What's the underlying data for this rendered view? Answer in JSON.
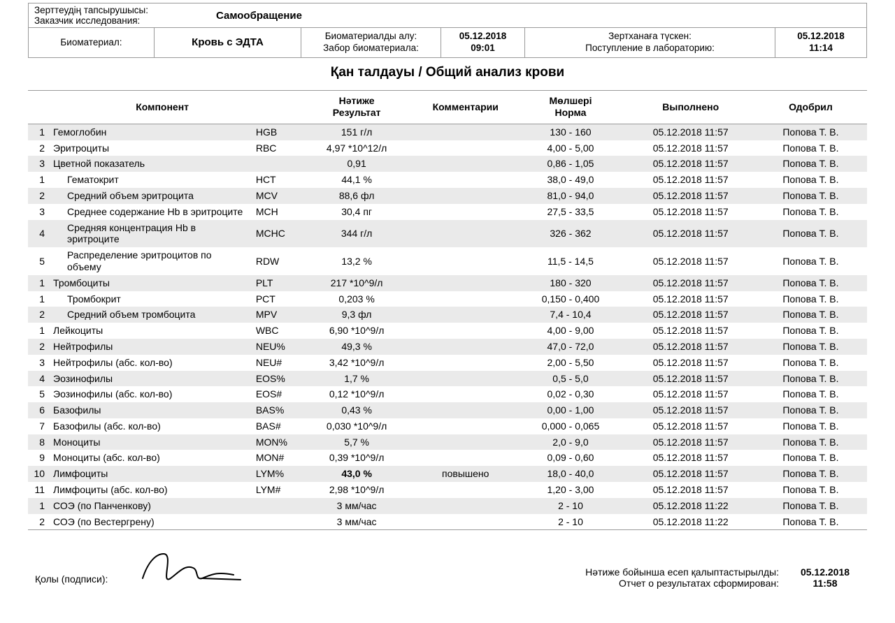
{
  "header": {
    "requester_label_kk": "Зерттеудің тапсырушысы:",
    "requester_label_ru": "Заказчик исследования:",
    "requester_value": "Самообращение",
    "biomaterial_label": "Биоматериал:",
    "biomaterial_value": "Кровь с ЭДТА",
    "collection_label_kk": "Биоматериалды алу:",
    "collection_label_ru": "Забор биоматериала:",
    "collection_date": "05.12.2018",
    "collection_time": "09:01",
    "lab_label_kk": "Зертханаға түскен:",
    "lab_label_ru": "Поступление в лабораторию:",
    "lab_date": "05.12.2018",
    "lab_time": "11:14"
  },
  "title": "Қан  талдауы / Общий анализ крови",
  "columns": {
    "component": "Компонент",
    "result_kk": "Нәтиже",
    "result_ru": "Результат",
    "comment": "Комментарии",
    "range_kk": "Мөлшері",
    "range_ru": "Норма",
    "done": "Выполнено",
    "approved": "Одобрил"
  },
  "rows": [
    {
      "n": "1",
      "indent": 0,
      "name": "Гемоглобин",
      "code": "HGB",
      "result": "151 г/л",
      "comment": "",
      "range": "130 - 160",
      "done": "05.12.2018 11:57",
      "approved": "Попова Т. В.",
      "shaded": true,
      "bold": false
    },
    {
      "n": "2",
      "indent": 0,
      "name": "Эритроциты",
      "code": "RBC",
      "result": "4,97 *10^12/л",
      "comment": "",
      "range": "4,00 - 5,00",
      "done": "05.12.2018 11:57",
      "approved": "Попова Т. В.",
      "shaded": false,
      "bold": false
    },
    {
      "n": "3",
      "indent": 0,
      "name": "Цветной показатель",
      "code": "",
      "result": "0,91",
      "comment": "",
      "range": "0,86 - 1,05",
      "done": "05.12.2018 11:57",
      "approved": "Попова Т. В.",
      "shaded": true,
      "bold": false
    },
    {
      "n": "1",
      "indent": 1,
      "name": "Гематокрит",
      "code": "HCT",
      "result": "44,1 %",
      "comment": "",
      "range": "38,0 - 49,0",
      "done": "05.12.2018 11:57",
      "approved": "Попова Т. В.",
      "shaded": false,
      "bold": false
    },
    {
      "n": "2",
      "indent": 1,
      "name": "Средний объем эритроцита",
      "code": "MCV",
      "result": "88,6 фл",
      "comment": "",
      "range": "81,0 - 94,0",
      "done": "05.12.2018 11:57",
      "approved": "Попова Т. В.",
      "shaded": true,
      "bold": false
    },
    {
      "n": "3",
      "indent": 1,
      "name": "Среднее содержание Hb в эритроците",
      "code": "MCH",
      "result": "30,4 пг",
      "comment": "",
      "range": "27,5 - 33,5",
      "done": "05.12.2018 11:57",
      "approved": "Попова Т. В.",
      "shaded": false,
      "bold": false
    },
    {
      "n": "4",
      "indent": 1,
      "name": "Средняя концентрация Hb в эритроците",
      "code": "MCHC",
      "result": "344 г/л",
      "comment": "",
      "range": "326 - 362",
      "done": "05.12.2018 11:57",
      "approved": "Попова Т. В.",
      "shaded": true,
      "bold": false
    },
    {
      "n": "5",
      "indent": 1,
      "name": "Распределение эритроцитов по объему",
      "code": "RDW",
      "result": "13,2 %",
      "comment": "",
      "range": "11,5 - 14,5",
      "done": "05.12.2018 11:57",
      "approved": "Попова Т. В.",
      "shaded": false,
      "bold": false
    },
    {
      "n": "1",
      "indent": 0,
      "name": "Тромбоциты",
      "code": "PLT",
      "result": "217 *10^9/л",
      "comment": "",
      "range": "180 - 320",
      "done": "05.12.2018 11:57",
      "approved": "Попова Т. В.",
      "shaded": true,
      "bold": false
    },
    {
      "n": "1",
      "indent": 1,
      "name": "Тромбокрит",
      "code": "PCT",
      "result": "0,203 %",
      "comment": "",
      "range": "0,150 - 0,400",
      "done": "05.12.2018 11:57",
      "approved": "Попова Т. В.",
      "shaded": false,
      "bold": false
    },
    {
      "n": "2",
      "indent": 1,
      "name": "Средний объем тромбоцита",
      "code": "MPV",
      "result": "9,3 фл",
      "comment": "",
      "range": "7,4 - 10,4",
      "done": "05.12.2018 11:57",
      "approved": "Попова Т. В.",
      "shaded": true,
      "bold": false
    },
    {
      "n": "1",
      "indent": 0,
      "name": "Лейкоциты",
      "code": "WBC",
      "result": "6,90 *10^9/л",
      "comment": "",
      "range": "4,00 - 9,00",
      "done": "05.12.2018 11:57",
      "approved": "Попова Т. В.",
      "shaded": false,
      "bold": false
    },
    {
      "n": "2",
      "indent": 0,
      "name": "Нейтрофилы",
      "code": "NEU%",
      "result": "49,3 %",
      "comment": "",
      "range": "47,0 - 72,0",
      "done": "05.12.2018 11:57",
      "approved": "Попова Т. В.",
      "shaded": true,
      "bold": false
    },
    {
      "n": "3",
      "indent": 0,
      "name": "Нейтрофилы (абс. кол-во)",
      "code": "NEU#",
      "result": "3,42 *10^9/л",
      "comment": "",
      "range": "2,00 - 5,50",
      "done": "05.12.2018 11:57",
      "approved": "Попова Т. В.",
      "shaded": false,
      "bold": false
    },
    {
      "n": "4",
      "indent": 0,
      "name": "Эозинофилы",
      "code": "EOS%",
      "result": "1,7 %",
      "comment": "",
      "range": "0,5 - 5,0",
      "done": "05.12.2018 11:57",
      "approved": "Попова Т. В.",
      "shaded": true,
      "bold": false
    },
    {
      "n": "5",
      "indent": 0,
      "name": "Эозинофилы (абс. кол-во)",
      "code": "EOS#",
      "result": "0,12 *10^9/л",
      "comment": "",
      "range": "0,02 - 0,30",
      "done": "05.12.2018 11:57",
      "approved": "Попова Т. В.",
      "shaded": false,
      "bold": false
    },
    {
      "n": "6",
      "indent": 0,
      "name": "Базофилы",
      "code": "BAS%",
      "result": "0,43 %",
      "comment": "",
      "range": "0,00 - 1,00",
      "done": "05.12.2018 11:57",
      "approved": "Попова Т. В.",
      "shaded": true,
      "bold": false
    },
    {
      "n": "7",
      "indent": 0,
      "name": "Базофилы (абс. кол-во)",
      "code": "BAS#",
      "result": "0,030 *10^9/л",
      "comment": "",
      "range": "0,000 - 0,065",
      "done": "05.12.2018 11:57",
      "approved": "Попова Т. В.",
      "shaded": false,
      "bold": false
    },
    {
      "n": "8",
      "indent": 0,
      "name": "Моноциты",
      "code": "MON%",
      "result": "5,7 %",
      "comment": "",
      "range": "2,0 - 9,0",
      "done": "05.12.2018 11:57",
      "approved": "Попова Т. В.",
      "shaded": true,
      "bold": false
    },
    {
      "n": "9",
      "indent": 0,
      "name": "Моноциты (абс. кол-во)",
      "code": "MON#",
      "result": "0,39 *10^9/л",
      "comment": "",
      "range": "0,09 - 0,60",
      "done": "05.12.2018 11:57",
      "approved": "Попова Т. В.",
      "shaded": false,
      "bold": false
    },
    {
      "n": "10",
      "indent": 0,
      "name": "Лимфоциты",
      "code": "LYM%",
      "result": "43,0 %",
      "comment": "повышено",
      "range": "18,0 - 40,0",
      "done": "05.12.2018 11:57",
      "approved": "Попова Т. В.",
      "shaded": true,
      "bold": true
    },
    {
      "n": "11",
      "indent": 0,
      "name": "Лимфоциты (абс. кол-во)",
      "code": "LYM#",
      "result": "2,98 *10^9/л",
      "comment": "",
      "range": "1,20 - 3,00",
      "done": "05.12.2018 11:57",
      "approved": "Попова Т. В.",
      "shaded": false,
      "bold": false
    },
    {
      "n": "1",
      "indent": 0,
      "name": "СОЭ (по Панченкову)",
      "code": "",
      "result": "3 мм/час",
      "comment": "",
      "range": "2 - 10",
      "done": "05.12.2018 11:22",
      "approved": "Попова Т. В.",
      "shaded": true,
      "bold": false
    },
    {
      "n": "2",
      "indent": 0,
      "name": "СОЭ (по Вестергрену)",
      "code": "",
      "result": "3 мм/час",
      "comment": "",
      "range": "2 - 10",
      "done": "05.12.2018 11:22",
      "approved": "Попова Т. В.",
      "shaded": false,
      "bold": false
    }
  ],
  "footer": {
    "signature_label": "Қолы (подписи):",
    "report_label_kk": "Нәтиже бойынша есеп қалыптастырылды:",
    "report_label_ru": "Отчет о результатах сформирован:",
    "report_date": "05.12.2018",
    "report_time": "11:58"
  }
}
